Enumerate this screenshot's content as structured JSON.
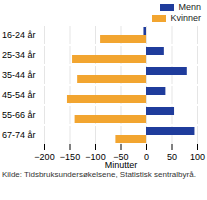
{
  "chart_data": {
    "type": "bar",
    "orientation": "horizontal",
    "categories": [
      "16-24 år",
      "25-34 år",
      "35-44 år",
      "45-54 år",
      "55-66 år",
      "67-74 år"
    ],
    "series": [
      {
        "name": "Menn",
        "color": "#1f3c9c",
        "values": [
          -5,
          35,
          80,
          38,
          55,
          95
        ]
      },
      {
        "name": "Kvinner",
        "color": "#f2a530",
        "values": [
          -90,
          -145,
          -135,
          -155,
          -140,
          -60
        ]
      }
    ],
    "x_label": "Minutter",
    "xlim": [
      -200,
      100
    ],
    "xticks": [
      -200,
      -150,
      -100,
      -50,
      0,
      50,
      100
    ],
    "grid": true,
    "legend": "top-right",
    "caption": "Kilde: Tidsbruksundersøkelsene, Statistisk sentralbyrå."
  }
}
